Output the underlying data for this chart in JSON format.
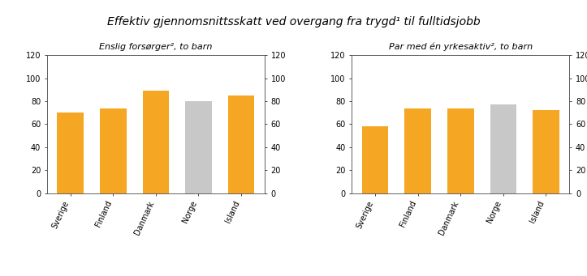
{
  "title": "Effektiv gjennomsnittsskatt ved overgang fra trygd¹ til fulltidsjobb",
  "left_subtitle": "Enslig forsørger², to barn",
  "right_subtitle": "Par med én yrkesaktiv², to barn",
  "categories": [
    "Sverige",
    "Finland",
    "Danmark",
    "Norge",
    "Island"
  ],
  "left_values": [
    70,
    74,
    89,
    80,
    85
  ],
  "right_values": [
    58,
    74,
    74,
    77,
    72
  ],
  "left_colors": [
    "#F5A623",
    "#F5A623",
    "#F5A623",
    "#C8C8C8",
    "#F5A623"
  ],
  "right_colors": [
    "#F5A623",
    "#F5A623",
    "#F5A623",
    "#C8C8C8",
    "#F5A623"
  ],
  "ylim": [
    0,
    120
  ],
  "yticks": [
    0,
    20,
    40,
    60,
    80,
    100,
    120
  ],
  "background_color": "#FFFFFF",
  "plot_bg_color": "#FFFFFF",
  "title_fontsize": 10,
  "subtitle_fontsize": 8,
  "tick_fontsize": 7,
  "label_fontsize": 7
}
